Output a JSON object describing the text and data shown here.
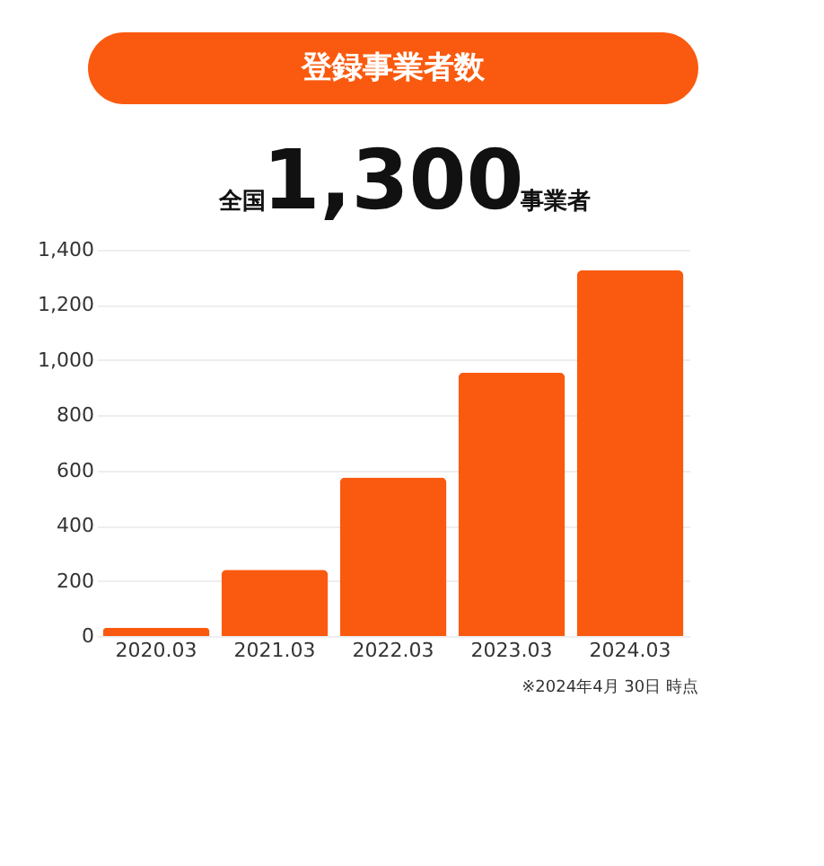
{
  "chart_data": {
    "type": "bar",
    "title": "登録事業者数",
    "subtitle": "全国1,300事業者",
    "categories": [
      "2020.03",
      "2021.03",
      "2022.03",
      "2023.03",
      "2024.03"
    ],
    "values": [
      30,
      240,
      575,
      955,
      1325
    ],
    "color": "#fa5a0f",
    "ylim": [
      0,
      1400
    ],
    "yticks": [
      0,
      200,
      400,
      600,
      800,
      {
        "value": 1000,
        "label": "1,000"
      },
      {
        "value": 1200,
        "label": "1,200"
      },
      {
        "value": 1400,
        "label": "1,400"
      }
    ],
    "grid": "y",
    "annotations": [
      "※2024年4月 30日 時点"
    ]
  }
}
